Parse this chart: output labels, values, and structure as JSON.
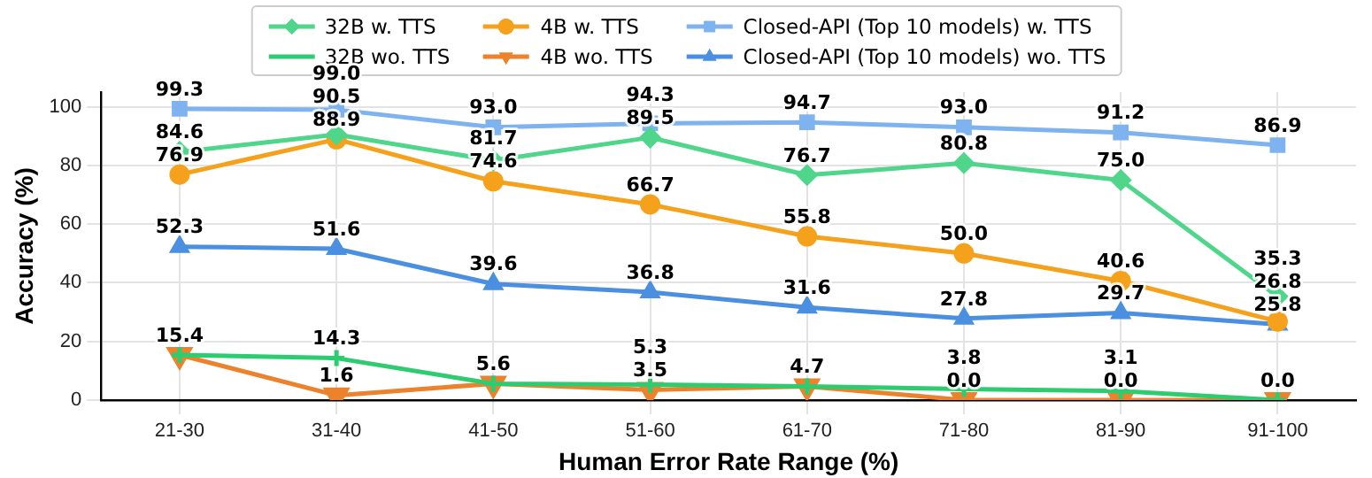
{
  "chart_data": {
    "type": "line",
    "xlabel": "Human Error Rate Range (%)",
    "ylabel": "Accuracy (%)",
    "categories": [
      "21-30",
      "31-40",
      "41-50",
      "51-60",
      "61-70",
      "71-80",
      "81-90",
      "91-100"
    ],
    "series": [
      {
        "name": "32B w. TTS",
        "color": "#4fd68b",
        "marker": "diamond",
        "values": [
          84.6,
          90.5,
          81.7,
          89.5,
          76.7,
          80.8,
          75.0,
          35.3
        ],
        "value_labels": [
          "84.6",
          "90.5",
          "81.7",
          "89.5",
          "76.7",
          "80.8",
          "75.0",
          "35.3"
        ]
      },
      {
        "name": "32B wo. TTS",
        "color": "#2ecc71",
        "marker": "cross",
        "values": [
          15.4,
          14.3,
          5.6,
          5.3,
          4.7,
          3.8,
          3.1,
          0.0
        ],
        "value_labels": [
          "15.4",
          "14.3",
          "5.6",
          "5.3",
          "4.7",
          "3.8",
          "3.1",
          "0.0"
        ]
      },
      {
        "name": "4B w. TTS",
        "color": "#f5a11c",
        "marker": "circle",
        "values": [
          76.9,
          88.9,
          74.6,
          66.7,
          55.8,
          50.0,
          40.6,
          26.8
        ],
        "value_labels": [
          "76.9",
          "88.9",
          "74.6",
          "66.7",
          "55.8",
          "50.0",
          "40.6",
          "26.8"
        ]
      },
      {
        "name": "4B wo. TTS",
        "color": "#ec822b",
        "marker": "triangle-down",
        "values": [
          15.4,
          1.6,
          5.6,
          3.5,
          4.7,
          0.0,
          0.0,
          0.0
        ],
        "value_labels": [
          null,
          "1.6",
          null,
          "3.5",
          null,
          "0.0",
          "0.0",
          null
        ]
      },
      {
        "name": "Closed-API (Top 10 models) w. TTS",
        "color": "#7fb3f0",
        "marker": "square",
        "values": [
          99.3,
          99.0,
          93.0,
          94.3,
          94.7,
          93.0,
          91.2,
          86.9
        ],
        "value_labels": [
          "99.3",
          "99.0",
          "93.0",
          "94.3",
          "94.7",
          "93.0",
          "91.2",
          "86.9"
        ]
      },
      {
        "name": "Closed-API (Top 10 models) wo. TTS",
        "color": "#4a8fe0",
        "marker": "triangle",
        "values": [
          52.3,
          51.6,
          39.6,
          36.8,
          31.6,
          27.8,
          29.7,
          25.8
        ],
        "value_labels": [
          "52.3",
          "51.6",
          "39.6",
          "36.8",
          "31.6",
          "27.8",
          "29.7",
          "25.8"
        ]
      }
    ],
    "ylim": [
      0,
      105
    ],
    "yticks": [
      0,
      20,
      40,
      60,
      80,
      100
    ],
    "grid": true,
    "legend": "top",
    "line_style": "solid"
  }
}
